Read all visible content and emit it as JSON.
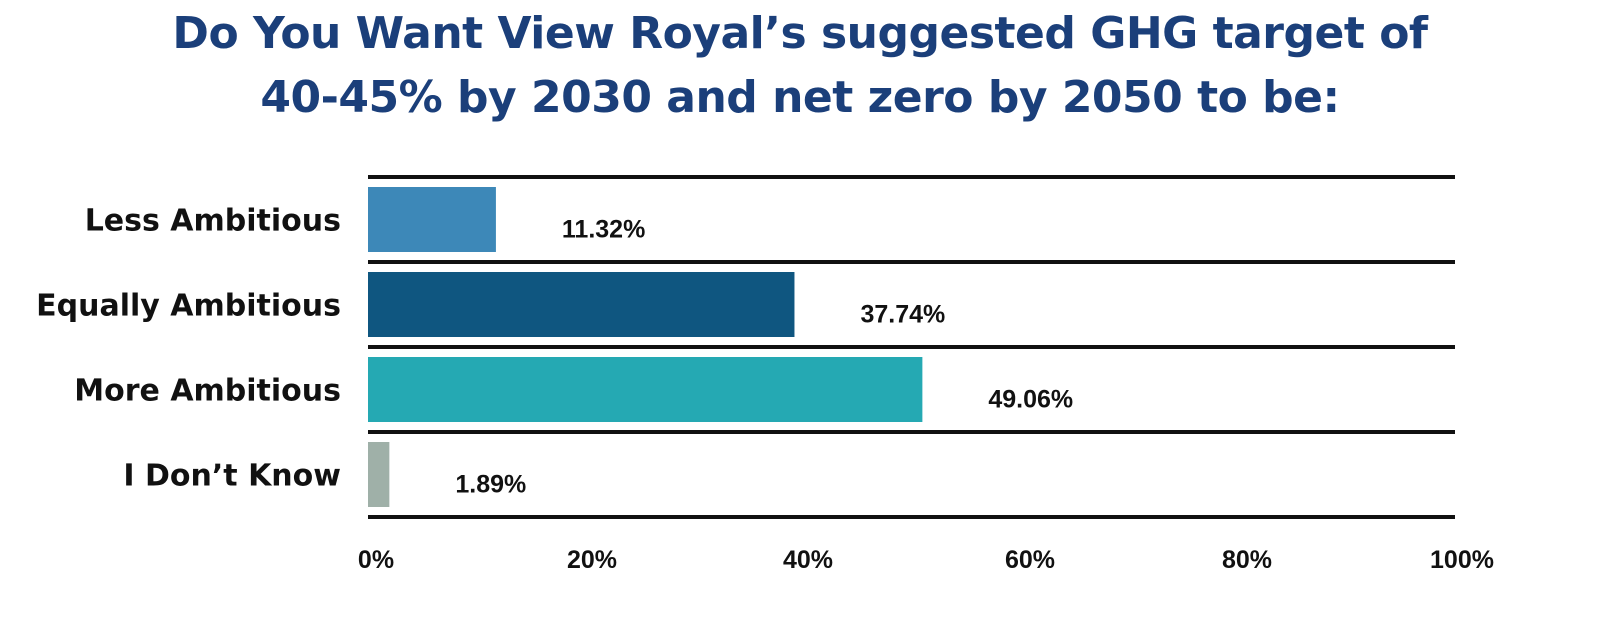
{
  "chart_data": {
    "type": "bar",
    "orientation": "horizontal",
    "title_lines": [
      "Do You Want View Royal’s suggested GHG target of",
      "40-45% by 2030 and net zero by 2050 to be:"
    ],
    "categories": [
      "Less Ambitious",
      "Equally Ambitious",
      "More Ambitious",
      "I Don’t Know"
    ],
    "values": [
      11.32,
      37.74,
      49.06,
      1.89
    ],
    "value_labels": [
      "11.32%",
      "37.74%",
      "49.06%",
      "1.89%"
    ],
    "colors": [
      "#3d88b8",
      "#0f5680",
      "#25a9b3",
      "#9fb0a8"
    ],
    "xlim": [
      0,
      100
    ],
    "xticks": [
      0,
      20,
      40,
      60,
      80,
      100
    ],
    "xtick_labels": [
      "0%",
      "20%",
      "40%",
      "60%",
      "80%",
      "100%"
    ],
    "gridlines": "horizontal separators between categories",
    "legend": "none",
    "title_color": "#1b3f7a"
  }
}
